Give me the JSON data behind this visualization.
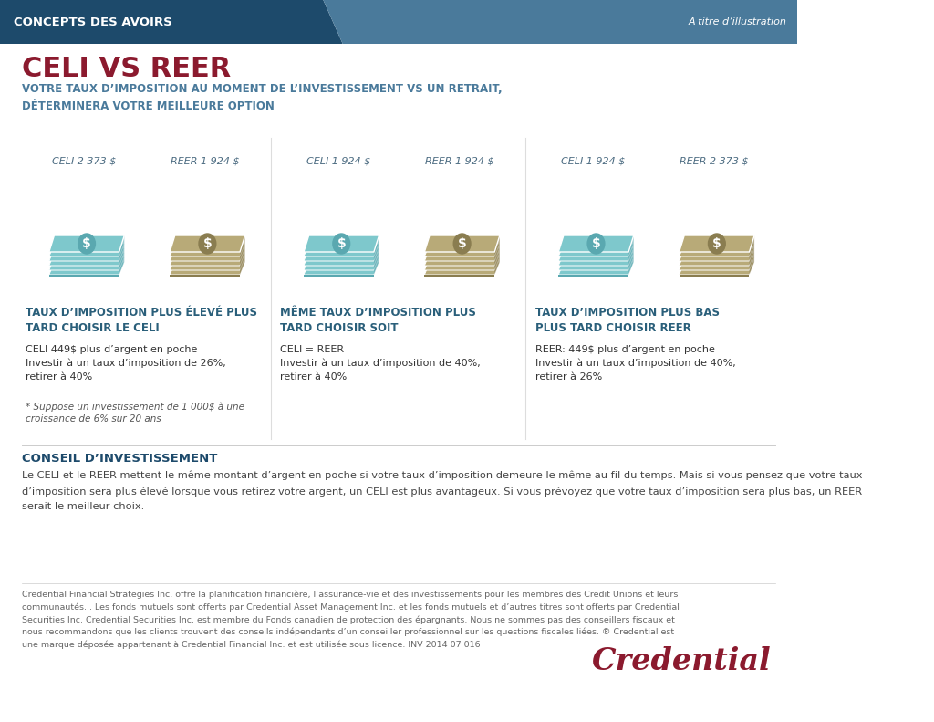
{
  "bg_color": "#ffffff",
  "header_dark_color": "#1d4a6b",
  "header_light_color": "#4a7a9b",
  "header_text": "CONCEPTS DES AVOIRS",
  "header_right_text": "A titre d’illustration",
  "title": "CELI VS REER",
  "subtitle": "VOTRE TAUX D’IMPOSITION AU MOMENT DE L’INVESTISSEMENT VS UN RETRAIT,\nDÉTERMINERA VOTRE MEILLEURE OPTION",
  "title_color": "#8b1a2e",
  "subtitle_color": "#4a7a9b",
  "celi_color": "#7ec8cc",
  "celi_dark_color": "#5aa8b0",
  "reer_color": "#b8aa78",
  "reer_dark_color": "#8a7d50",
  "money_label_color": "#4a6a80",
  "section_title_color": "#2a5f7a",
  "body_text_color": "#333333",
  "sections": [
    {
      "celi_label": "CELI 2 373 $",
      "reer_label": "REER 1 924 $",
      "title": "TAUX D’IMPOSITION PLUS ÉLEVÉ PLUS\nTARD CHOISIR LE CELI",
      "body": "CELI 449$ plus d’argent en poche\nInvestir à un taux d’imposition de 26%;\nretirer à 40%",
      "note": "* Suppose un investissement de 1 000$ à une\ncroissance de 6% sur 20 ans"
    },
    {
      "celi_label": "CELI 1 924 $",
      "reer_label": "REER 1 924 $",
      "title": "MÊME TAUX D’IMPOSITION PLUS\nTARD CHOISIR SOIT",
      "body": "CELI = REER\nInvestir à un taux d’imposition de 40%;\nretirer à 40%",
      "note": ""
    },
    {
      "celi_label": "CELI 1 924 $",
      "reer_label": "REER 2 373 $",
      "title": "TAUX D’IMPOSITION PLUS BAS\nPLUS TARD CHOISIR REER",
      "body": "REER: 449$ plus d’argent en poche\nInvestir à un taux d’imposition de 40%;\nretirer à 26%",
      "note": ""
    }
  ],
  "conseil_title": "CONSEIL D’INVESTISSEMENT",
  "conseil_body": "Le CELI et le REER mettent le même montant d’argent en poche si votre taux d’imposition demeure le même au fil du temps. Mais si vous pensez que votre taux\nd’imposition sera plus élevé lorsque vous retirez votre argent, un CELI est plus avantageux. Si vous prévoyez que votre taux d’imposition sera plus bas, un REER\nserait le meilleur choix.",
  "disclaimer": "Credential Financial Strategies Inc. offre la planification financière, l’assurance-vie et des investissements pour les membres des Credit Unions et leurs\ncommunautés. . Les fonds mutuels sont offerts par Credential Asset Management Inc. et les fonds mutuels et d’autres titres sont offerts par Credential\nSecurities Inc. Credential Securities Inc. est membre du Fonds canadien de protection des épargnants. Nous ne sommes pas des conseillers fiscaux et\nnous recommandons que les clients trouvent des conseils indépendants d’un conseiller professionnel sur les questions fiscales liées. ® Credential est\nune marque déposée appartenant à Credential Financial Inc. et est utilisée sous licence. INV 2014 07 016",
  "credential_text": "Credential",
  "credential_color": "#8b1a2e"
}
